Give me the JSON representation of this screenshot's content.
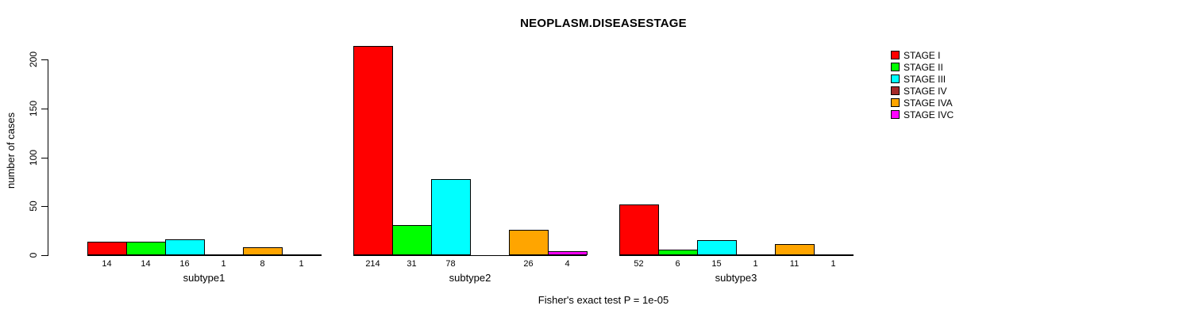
{
  "chart_data": {
    "type": "bar",
    "title": "NEOPLASM.DISEASESTAGE",
    "xlabel": "",
    "ylabel": "number of cases",
    "ylim": [
      0,
      215
    ],
    "yticks": [
      0,
      50,
      100,
      150,
      200
    ],
    "grid": false,
    "legend_position": "top-right",
    "categories": [
      "subtype1",
      "subtype2",
      "subtype3"
    ],
    "series": [
      {
        "name": "STAGE I",
        "color": "#FF0000",
        "values": [
          14,
          214,
          52
        ]
      },
      {
        "name": "STAGE II",
        "color": "#00FF00",
        "values": [
          14,
          31,
          6
        ]
      },
      {
        "name": "STAGE III",
        "color": "#00FFFF",
        "values": [
          16,
          78,
          15
        ]
      },
      {
        "name": "STAGE IV",
        "color": "#A52A2A",
        "values": [
          1,
          0,
          1
        ]
      },
      {
        "name": "STAGE IVA",
        "color": "#FFA500",
        "values": [
          8,
          26,
          11
        ]
      },
      {
        "name": "STAGE IVC",
        "color": "#FF00FF",
        "values": [
          1,
          4,
          1
        ]
      }
    ],
    "bar_labels": [
      [
        "14",
        "14",
        "16",
        "1",
        "8",
        "1"
      ],
      [
        "214",
        "31",
        "78",
        "",
        "26",
        "4"
      ],
      [
        "52",
        "6",
        "15",
        "1",
        "11",
        "1"
      ]
    ],
    "annotation": "Fisher's exact test P = 1e-05"
  }
}
